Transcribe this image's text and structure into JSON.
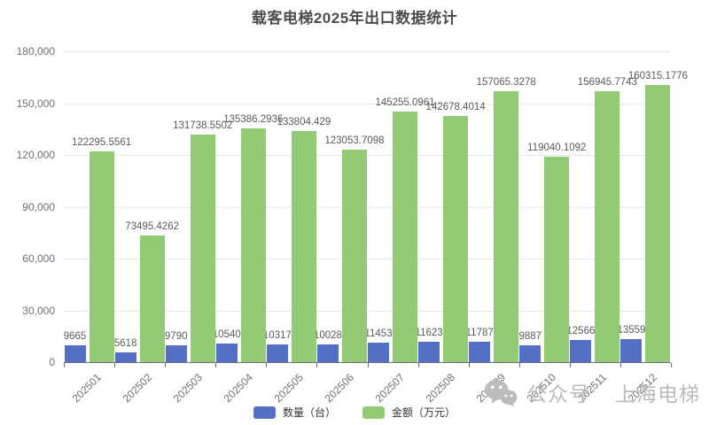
{
  "chart_data": {
    "type": "bar",
    "title": "载客电梯2025年出口数据统计",
    "categories": [
      "202501",
      "202502",
      "202503",
      "202504",
      "202505",
      "202506",
      "202507",
      "202508",
      "202509",
      "202510",
      "202511",
      "202512"
    ],
    "series": [
      {
        "name": "数量（台）",
        "color": "#5470c6",
        "values": [
          9665,
          5618,
          9790,
          10540,
          10317,
          10028,
          11453,
          11623,
          11787,
          9887,
          12566,
          13559
        ],
        "labels": [
          "9665",
          "5618",
          "9790",
          "10540",
          "10317",
          "10028",
          "11453",
          "11623",
          "11787",
          "9887",
          "12566",
          "13559"
        ]
      },
      {
        "name": "金额（万元）",
        "color": "#91cc75",
        "values": [
          122295.5561,
          73495.4262,
          131738.5502,
          135386.2936,
          133804.429,
          123053.7098,
          145255.0961,
          142678.4014,
          157065.3278,
          119040.1092,
          156945.7743,
          160315.1776
        ],
        "labels": [
          "122295.5561",
          "73495.4262",
          "131738.5502",
          "135386.2936",
          "133804.429",
          "123053.7098",
          "145255.0961",
          "142678.4014",
          "157065.3278",
          "119040.1092",
          "156945.7743",
          "160315.1776"
        ]
      }
    ],
    "xlabel": "",
    "ylabel": "",
    "ylim": [
      0,
      180000
    ],
    "yticks": [
      {
        "value": 180000,
        "label": "180,000"
      },
      {
        "value": 150000,
        "label": "150,000"
      },
      {
        "value": 120000,
        "label": "120,000"
      },
      {
        "value": 90000,
        "label": "90,000"
      },
      {
        "value": 60000,
        "label": "60,000"
      },
      {
        "value": 30000,
        "label": "30,000"
      },
      {
        "value": 0,
        "label": "0"
      }
    ],
    "grid": true,
    "legend_position": "bottom"
  },
  "watermark": {
    "icon": "wechat-icon",
    "account_text": "公众号",
    "brand_text": "上海电梯",
    "color": "#bcbcbc"
  }
}
